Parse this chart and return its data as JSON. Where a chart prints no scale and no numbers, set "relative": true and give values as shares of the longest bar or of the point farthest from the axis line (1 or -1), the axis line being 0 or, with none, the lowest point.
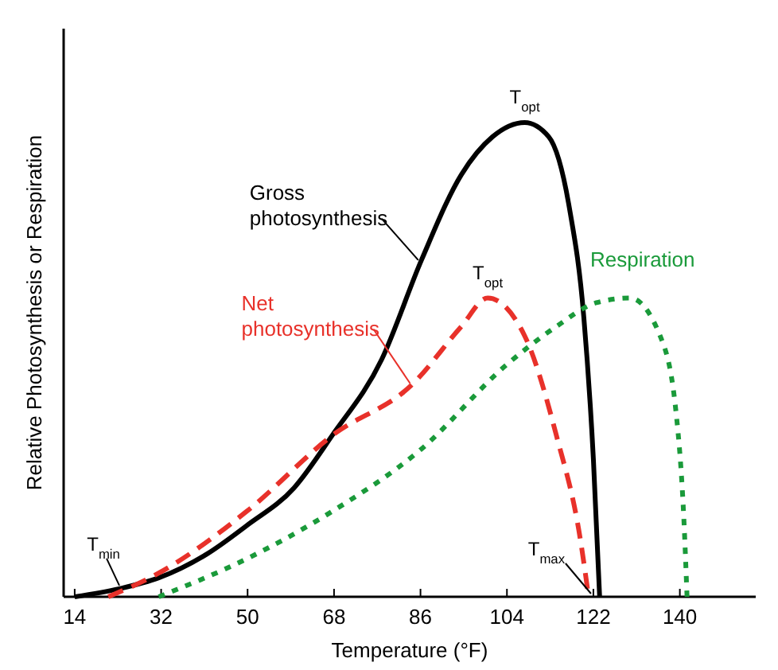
{
  "chart_data": {
    "type": "line",
    "relative": true,
    "xlabel": "Temperature (°F)",
    "ylabel": "Relative Photosynthesis or Respiration",
    "xlim": [
      11.7,
      155.8
    ],
    "xticks": [
      14,
      32,
      50,
      68,
      86,
      104,
      122,
      140
    ],
    "grid": false,
    "legend": false,
    "marker": "none",
    "series": [
      {
        "name": "Gross photosynthesis",
        "color": "#000000",
        "line_style": "solid",
        "x": [
          14,
          23.3,
          31.5,
          41.5,
          49.8,
          59.7,
          67.6,
          77.9,
          86.2,
          94.5,
          101,
          107.7,
          112.7,
          117,
          120,
          122,
          123.3
        ],
        "values": [
          0,
          0.017,
          0.04,
          0.09,
          0.15,
          0.23,
          0.34,
          0.5,
          0.71,
          0.89,
          0.97,
          1.0,
          0.97,
          0.82,
          0.59,
          0.29,
          0
        ]
      },
      {
        "name": "Net photosynthesis",
        "color": "#e8312a",
        "line_style": "dashed",
        "x": [
          21,
          31.5,
          49.8,
          67.6,
          84.5,
          94.5,
          100,
          107.7,
          114.3,
          119.3,
          121
        ],
        "values": [
          0,
          0.05,
          0.18,
          0.34,
          0.45,
          0.57,
          0.63,
          0.55,
          0.34,
          0.12,
          0
        ]
      },
      {
        "name": "Respiration",
        "color": "#1a9a3a",
        "line_style": "dotted",
        "x": [
          31.5,
          49.8,
          67.6,
          86,
          104,
          114.3,
          122.6,
          129.6,
          135.9,
          139.2,
          140.9,
          141.5
        ],
        "values": [
          0,
          0.08,
          0.18,
          0.31,
          0.49,
          0.57,
          0.62,
          0.63,
          0.55,
          0.39,
          0.15,
          0
        ]
      }
    ],
    "annotations": [
      {
        "text": "T$_{opt}$",
        "x": 107.7,
        "y": 1.0
      },
      {
        "text": "T$_{opt}$",
        "x": 100,
        "y": 0.63
      },
      {
        "text": "T$_{min}$",
        "x": 23.3,
        "y": 0.017
      },
      {
        "text": "T$_{max}$",
        "x": 121.5,
        "y": 0
      }
    ]
  }
}
